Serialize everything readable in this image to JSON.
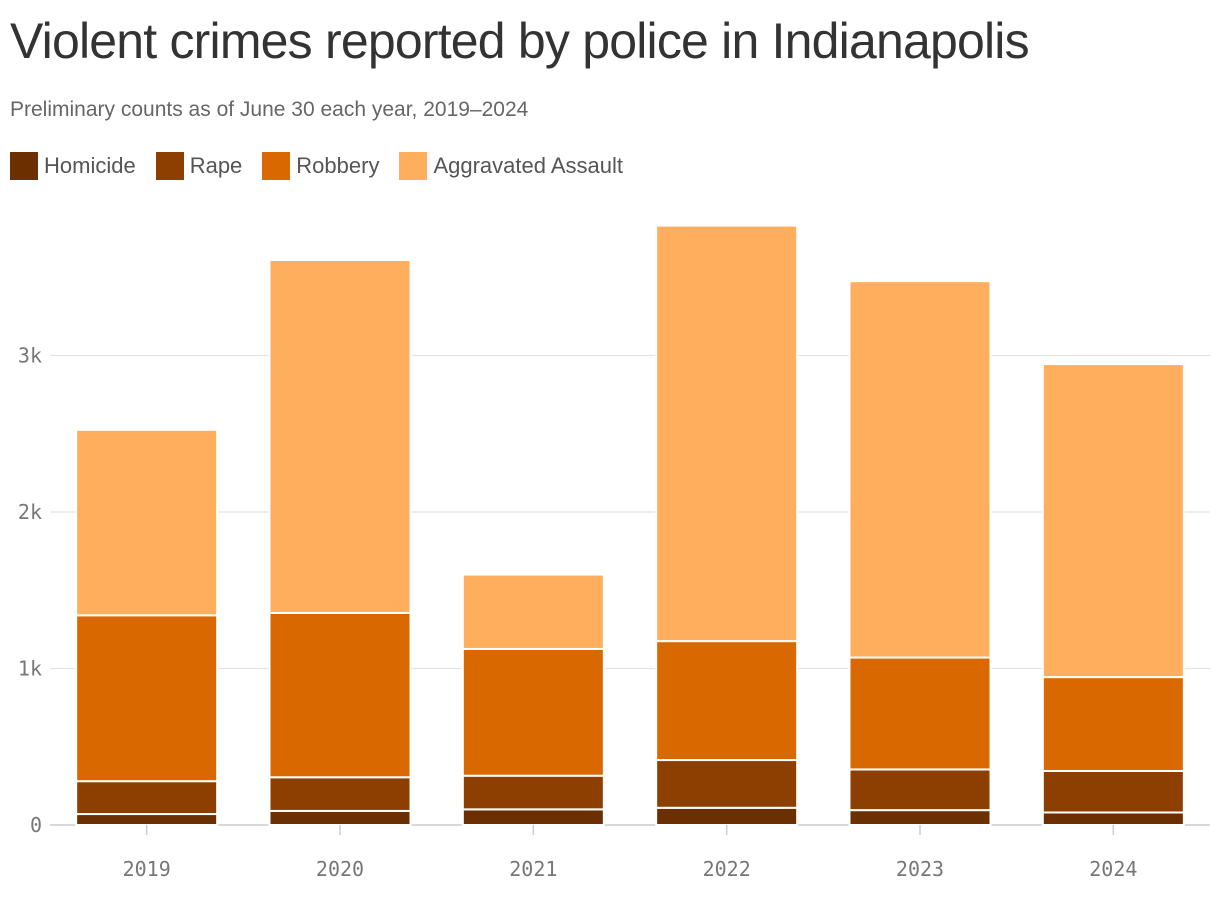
{
  "chart_data": {
    "type": "bar",
    "stacked": true,
    "title": "Violent crimes reported by police in Indianapolis",
    "subtitle": "Preliminary counts as of June 30 each year, 2019–2024",
    "categories": [
      "2019",
      "2020",
      "2021",
      "2022",
      "2023",
      "2024"
    ],
    "series": [
      {
        "name": "Homicide",
        "color": "#6b2f00",
        "values": [
          70,
          90,
          100,
          110,
          95,
          80
        ]
      },
      {
        "name": "Rape",
        "color": "#8c3f00",
        "values": [
          210,
          215,
          215,
          305,
          260,
          265
        ]
      },
      {
        "name": "Robbery",
        "color": "#d96800",
        "values": [
          1060,
          1050,
          810,
          760,
          715,
          600
        ]
      },
      {
        "name": "Aggravated Assault",
        "color": "#ffae5e",
        "values": [
          1185,
          2255,
          475,
          2655,
          2405,
          2000
        ]
      }
    ],
    "y_ticks": [
      {
        "value": 0,
        "label": "0"
      },
      {
        "value": 1000,
        "label": "1k"
      },
      {
        "value": 2000,
        "label": "2k"
      },
      {
        "value": 3000,
        "label": "3k"
      }
    ],
    "ylim": [
      0,
      3900
    ],
    "xlabel": "",
    "ylabel": "",
    "grid": true,
    "legend_position": "top-left"
  }
}
